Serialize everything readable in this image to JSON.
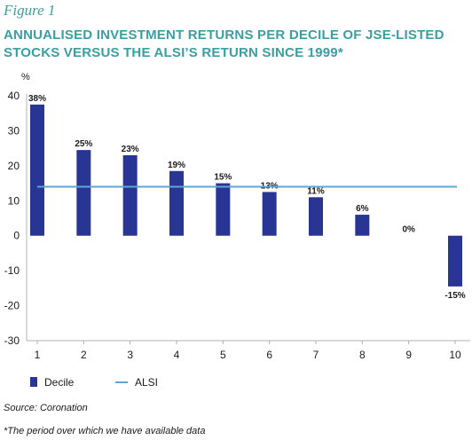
{
  "figure_label": "Figure 1",
  "title": "ANNUALISED INVESTMENT RETURNS PER DECILE OF JSE-LISTED STOCKS VERSUS THE ALSI’S RETURN SINCE 1999*",
  "source": "Source: Coronation",
  "footnote": "*The period over which we have available data",
  "colors": {
    "title": "#3a9fa0",
    "decile_bar": "#283593",
    "alsi_line": "#5ea6d6",
    "axis": "#b0b0b0"
  },
  "chart_data": {
    "type": "bar",
    "ylabel": "%",
    "xlabel": "",
    "categories": [
      "1",
      "2",
      "3",
      "4",
      "5",
      "6",
      "7",
      "8",
      "9",
      "10"
    ],
    "series": [
      {
        "name": "Decile",
        "values": [
          37.5,
          24.5,
          23,
          18.5,
          15,
          12.5,
          11,
          6,
          0,
          -14.5
        ]
      }
    ],
    "data_labels": [
      "38%",
      "25%",
      "23%",
      "19%",
      "15%",
      "13%",
      "11%",
      "6%",
      "0%",
      "-15%"
    ],
    "reference_line": {
      "name": "ALSI",
      "value": 14
    },
    "ylim": [
      -30,
      40
    ],
    "yticks": [
      -30,
      -20,
      -10,
      0,
      10,
      20,
      30,
      40
    ],
    "grid": false,
    "legend": "bottom-left"
  }
}
